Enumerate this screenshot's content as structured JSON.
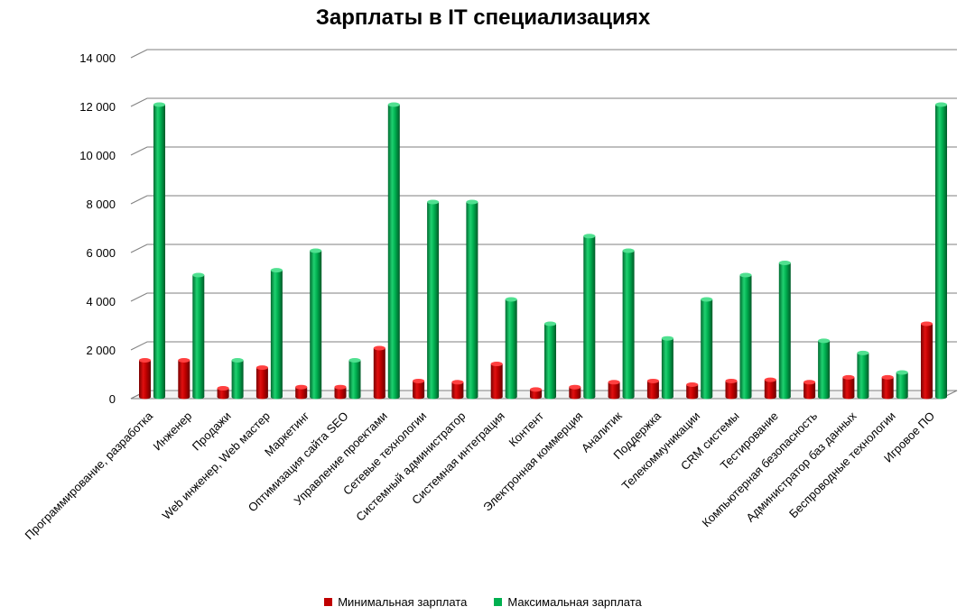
{
  "chart_data": {
    "type": "bar",
    "title": "Зарплаты в IT специализациях",
    "categories": [
      "Программирование, разработка",
      "Инженер",
      "Продажи",
      "Web инженер, Web мастер",
      "Маркетинг",
      "Оптимизация сайта SEO",
      "Управление проектами",
      "Сетевые технологии",
      "Системный администратор",
      "Системная интеграция",
      "Контент",
      "Электронная коммерция",
      "Аналитик",
      "Поддержка",
      "Телекоммуникации",
      "CRM системы",
      "Тестирование",
      "Компьютерная безопасность",
      "Администратор баз данных",
      "Беспроводные технологии",
      "Игровое ПО"
    ],
    "series": [
      {
        "name": "Минимальная зарплата",
        "color": "#c00000",
        "values": [
          1500,
          1500,
          350,
          1200,
          400,
          400,
          2000,
          650,
          600,
          1350,
          300,
          400,
          600,
          650,
          500,
          650,
          700,
          600,
          800,
          800,
          3000
        ]
      },
      {
        "name": "Максимальная зарплата",
        "color": "#00b050",
        "values": [
          12000,
          5000,
          1500,
          5200,
          6000,
          1500,
          12000,
          8000,
          8000,
          4000,
          3000,
          6600,
          6000,
          2400,
          4000,
          5000,
          5500,
          2300,
          1800,
          1000,
          12000
        ]
      }
    ],
    "ylim": [
      0,
      14000
    ],
    "yticks": [
      "0",
      "2 000",
      "4 000",
      "6 000",
      "8 000",
      "10 000",
      "12 000",
      "14 000"
    ],
    "ytick_values": [
      0,
      2000,
      4000,
      6000,
      8000,
      10000,
      12000,
      14000
    ],
    "grid": true,
    "legend_position": "bottom"
  }
}
